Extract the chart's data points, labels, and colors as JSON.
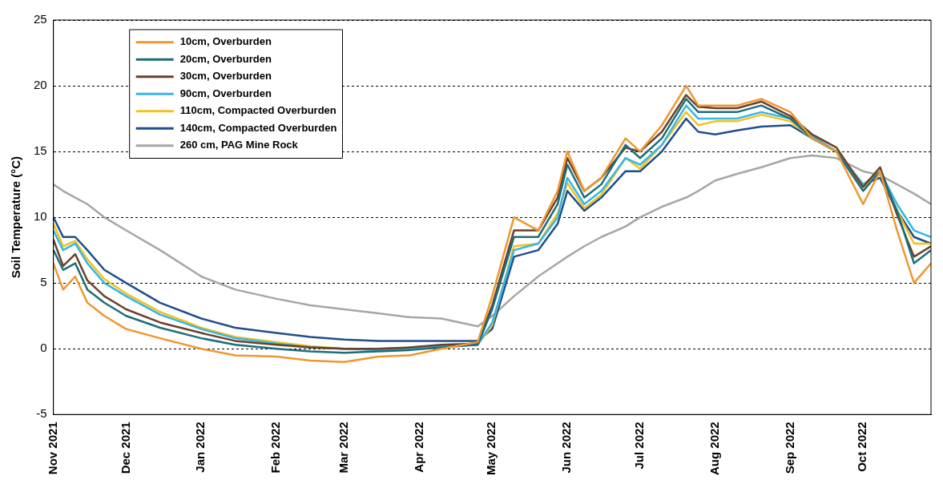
{
  "chart_data": {
    "type": "line",
    "ylabel": "Soil Temperature (°C)",
    "x": [
      "2021-11-01",
      "2021-11-05",
      "2021-11-10",
      "2021-11-15",
      "2021-11-22",
      "2021-12-01",
      "2021-12-15",
      "2022-01-01",
      "2022-01-15",
      "2022-02-01",
      "2022-02-15",
      "2022-03-01",
      "2022-03-15",
      "2022-03-28",
      "2022-04-10",
      "2022-04-25",
      "2022-05-01",
      "2022-05-10",
      "2022-05-20",
      "2022-05-28",
      "2022-06-01",
      "2022-06-08",
      "2022-06-15",
      "2022-06-25",
      "2022-07-01",
      "2022-07-10",
      "2022-07-20",
      "2022-07-25",
      "2022-08-01",
      "2022-08-10",
      "2022-08-20",
      "2022-09-01",
      "2022-09-10",
      "2022-09-20",
      "2022-10-01",
      "2022-10-08",
      "2022-10-15",
      "2022-10-22",
      "2022-10-29"
    ],
    "series": [
      {
        "name": "10cm, Overburden",
        "color": "#f0962e",
        "values": [
          6.5,
          4.5,
          5.5,
          3.5,
          2.5,
          1.5,
          0.8,
          0,
          -0.5,
          -0.6,
          -0.9,
          -1,
          -0.6,
          -0.5,
          0,
          0.5,
          4,
          10,
          9,
          12,
          15,
          12,
          13,
          16,
          15,
          17,
          20,
          18.5,
          18.5,
          18.5,
          19,
          18,
          16,
          15,
          11,
          13.5,
          9,
          5,
          6.5
        ]
      },
      {
        "name": "20cm, Overburden",
        "color": "#1b6e7a",
        "values": [
          7.5,
          6,
          6.5,
          4.5,
          3.5,
          2.5,
          1.6,
          0.8,
          0.3,
          0,
          -0.2,
          -0.3,
          -0.2,
          -0.1,
          0.1,
          0.3,
          3,
          8.5,
          8.5,
          11,
          14,
          11.5,
          12.5,
          15.5,
          14.5,
          16,
          19,
          18,
          18,
          18,
          18.5,
          17.5,
          16,
          15,
          12,
          13.5,
          10.5,
          6.5,
          7.5
        ]
      },
      {
        "name": "30cm, Overburden",
        "color": "#6b3f2a",
        "values": [
          8.3,
          6.3,
          7.2,
          5.2,
          4,
          3,
          2,
          1.2,
          0.6,
          0.3,
          0.1,
          0,
          0,
          0.1,
          0.3,
          0.4,
          3.3,
          9,
          9,
          11.5,
          14.5,
          12,
          13,
          15.3,
          15,
          16.5,
          19.3,
          18.4,
          18.3,
          18.3,
          18.8,
          17.7,
          16.3,
          15.3,
          12.3,
          13.8,
          10.2,
          7,
          7.8
        ]
      },
      {
        "name": "90cm, Overburden",
        "color": "#35b6e6",
        "values": [
          9,
          7.5,
          8,
          6.5,
          5,
          4,
          2.6,
          1.5,
          0.8,
          0.4,
          0.1,
          0,
          -0.1,
          0,
          0.2,
          0.3,
          2,
          7.5,
          8,
          10,
          13,
          11,
          12,
          14.5,
          14,
          15.5,
          18.5,
          17.5,
          17.5,
          17.5,
          18,
          17.5,
          16.2,
          15,
          12.5,
          13.5,
          11,
          9,
          8.5
        ]
      },
      {
        "name": "110cm, Compacted Overburden",
        "color": "#f2c21b",
        "values": [
          9.5,
          7.8,
          8.2,
          6.8,
          5.3,
          4.2,
          2.8,
          1.6,
          0.9,
          0.5,
          0.2,
          0,
          0,
          0.1,
          0.2,
          0.3,
          1.8,
          7.8,
          8,
          10.3,
          12.6,
          10.7,
          11.7,
          14.5,
          13.7,
          15.5,
          18,
          17,
          17.3,
          17.3,
          17.8,
          17.3,
          16,
          15,
          12.3,
          13.3,
          10.5,
          8,
          8
        ]
      },
      {
        "name": "140cm, Compacted Overburden",
        "color": "#1f4e8c",
        "values": [
          10,
          8.5,
          8.5,
          7.5,
          6,
          5,
          3.5,
          2.3,
          1.6,
          1.2,
          0.9,
          0.7,
          0.6,
          0.6,
          0.6,
          0.6,
          1.5,
          7,
          7.5,
          9.5,
          12,
          10.5,
          11.5,
          13.5,
          13.5,
          15,
          17.5,
          16.5,
          16.3,
          16.6,
          16.9,
          17,
          16,
          15,
          12.5,
          13,
          10.5,
          8.5,
          8
        ]
      },
      {
        "name": "260 cm, PAG Mine Rock",
        "color": "#a6a6a6",
        "values": [
          12.5,
          12,
          11.5,
          11,
          10,
          9,
          7.5,
          5.5,
          4.5,
          3.8,
          3.3,
          3,
          2.7,
          2.4,
          2.3,
          1.7,
          2.5,
          4,
          5.5,
          6.5,
          7,
          7.8,
          8.5,
          9.3,
          10,
          10.8,
          11.5,
          12,
          12.8,
          13.3,
          13.8,
          14.5,
          14.7,
          14.5,
          13.5,
          13.2,
          12.5,
          11.8,
          11
        ]
      }
    ],
    "xlim": [
      "2021-11-01",
      "2022-10-29"
    ],
    "xticks": [
      {
        "value": "2021-11-01",
        "label": "Nov 2021"
      },
      {
        "value": "2021-12-01",
        "label": "Dec 2021"
      },
      {
        "value": "2022-01-01",
        "label": "Jan 2022"
      },
      {
        "value": "2022-02-01",
        "label": "Feb 2022"
      },
      {
        "value": "2022-03-01",
        "label": "Mar 2022"
      },
      {
        "value": "2022-04-01",
        "label": "Apr 2022"
      },
      {
        "value": "2022-05-01",
        "label": "May 2022"
      },
      {
        "value": "2022-06-01",
        "label": "Jun 2022"
      },
      {
        "value": "2022-07-01",
        "label": "Jul 2022"
      },
      {
        "value": "2022-08-01",
        "label": "Aug 2022"
      },
      {
        "value": "2022-09-01",
        "label": "Sep 2022"
      },
      {
        "value": "2022-10-01",
        "label": "Oct 2022"
      }
    ],
    "ylim": [
      -5,
      25
    ],
    "yticks": [
      -5,
      0,
      5,
      10,
      15,
      20,
      25
    ],
    "grid": "y",
    "legend": "top left",
    "marker": "none",
    "line_style": "solid"
  }
}
